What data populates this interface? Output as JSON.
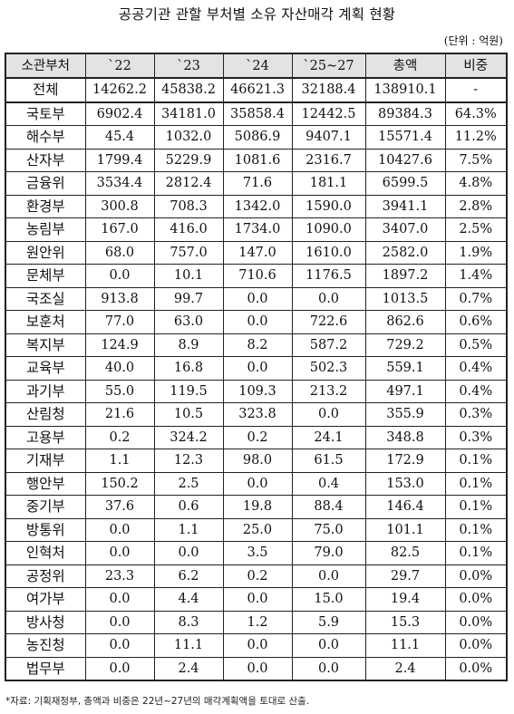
{
  "title": "공공기관 관할 부처별 소유 자산매각 계획 현황",
  "unit": "(단위 : 억원)",
  "columns": [
    "소관부처",
    "`22",
    "`23",
    "`24",
    "`25~27",
    "총액",
    "비중"
  ],
  "rows": [
    [
      "전체",
      "14262.2",
      "45838.2",
      "46621.3",
      "32188.4",
      "138910.1",
      "-"
    ],
    [
      "국토부",
      "6902.4",
      "34181.0",
      "35858.4",
      "12442.5",
      "89384.3",
      "64.3%"
    ],
    [
      "해수부",
      "45.4",
      "1032.0",
      "5086.9",
      "9407.1",
      "15571.4",
      "11.2%"
    ],
    [
      "산자부",
      "1799.4",
      "5229.9",
      "1081.6",
      "2316.7",
      "10427.6",
      "7.5%"
    ],
    [
      "금융위",
      "3534.4",
      "2812.4",
      "71.6",
      "181.1",
      "6599.5",
      "4.8%"
    ],
    [
      "환경부",
      "300.8",
      "708.3",
      "1342.0",
      "1590.0",
      "3941.1",
      "2.8%"
    ],
    [
      "농림부",
      "167.0",
      "416.0",
      "1734.0",
      "1090.0",
      "3407.0",
      "2.5%"
    ],
    [
      "원안위",
      "68.0",
      "757.0",
      "147.0",
      "1610.0",
      "2582.0",
      "1.9%"
    ],
    [
      "문체부",
      "0.0",
      "10.1",
      "710.6",
      "1176.5",
      "1897.2",
      "1.4%"
    ],
    [
      "국조실",
      "913.8",
      "99.7",
      "0.0",
      "0.0",
      "1013.5",
      "0.7%"
    ],
    [
      "보훈처",
      "77.0",
      "63.0",
      "0.0",
      "722.6",
      "862.6",
      "0.6%"
    ],
    [
      "복지부",
      "124.9",
      "8.9",
      "8.2",
      "587.2",
      "729.2",
      "0.5%"
    ],
    [
      "교육부",
      "40.0",
      "16.8",
      "0.0",
      "502.3",
      "559.1",
      "0.4%"
    ],
    [
      "과기부",
      "55.0",
      "119.5",
      "109.3",
      "213.2",
      "497.1",
      "0.4%"
    ],
    [
      "산림청",
      "21.6",
      "10.5",
      "323.8",
      "0.0",
      "355.9",
      "0.3%"
    ],
    [
      "고용부",
      "0.2",
      "324.2",
      "0.2",
      "24.1",
      "348.8",
      "0.3%"
    ],
    [
      "기재부",
      "1.1",
      "12.3",
      "98.0",
      "61.5",
      "172.9",
      "0.1%"
    ],
    [
      "행안부",
      "150.2",
      "2.5",
      "0.0",
      "0.4",
      "153.0",
      "0.1%"
    ],
    [
      "중기부",
      "37.6",
      "0.6",
      "19.8",
      "88.4",
      "146.4",
      "0.1%"
    ],
    [
      "방통위",
      "0.0",
      "1.1",
      "25.0",
      "75.0",
      "101.1",
      "0.1%"
    ],
    [
      "인혁처",
      "0.0",
      "0.0",
      "3.5",
      "79.0",
      "82.5",
      "0.1%"
    ],
    [
      "공정위",
      "23.3",
      "6.2",
      "0.2",
      "0.0",
      "29.7",
      "0.0%"
    ],
    [
      "여가부",
      "0.0",
      "4.4",
      "0.0",
      "15.0",
      "19.4",
      "0.0%"
    ],
    [
      "방사청",
      "0.0",
      "8.3",
      "1.2",
      "5.9",
      "15.3",
      "0.0%"
    ],
    [
      "농진청",
      "0.0",
      "11.1",
      "0.0",
      "0.0",
      "11.1",
      "0.0%"
    ],
    [
      "법무부",
      "0.0",
      "2.4",
      "0.0",
      "0.0",
      "2.4",
      "0.0%"
    ]
  ],
  "note": "*자료: 기획재정부, 총액과 비중은 22년~27년의 매각계획액을 토대로 산출."
}
